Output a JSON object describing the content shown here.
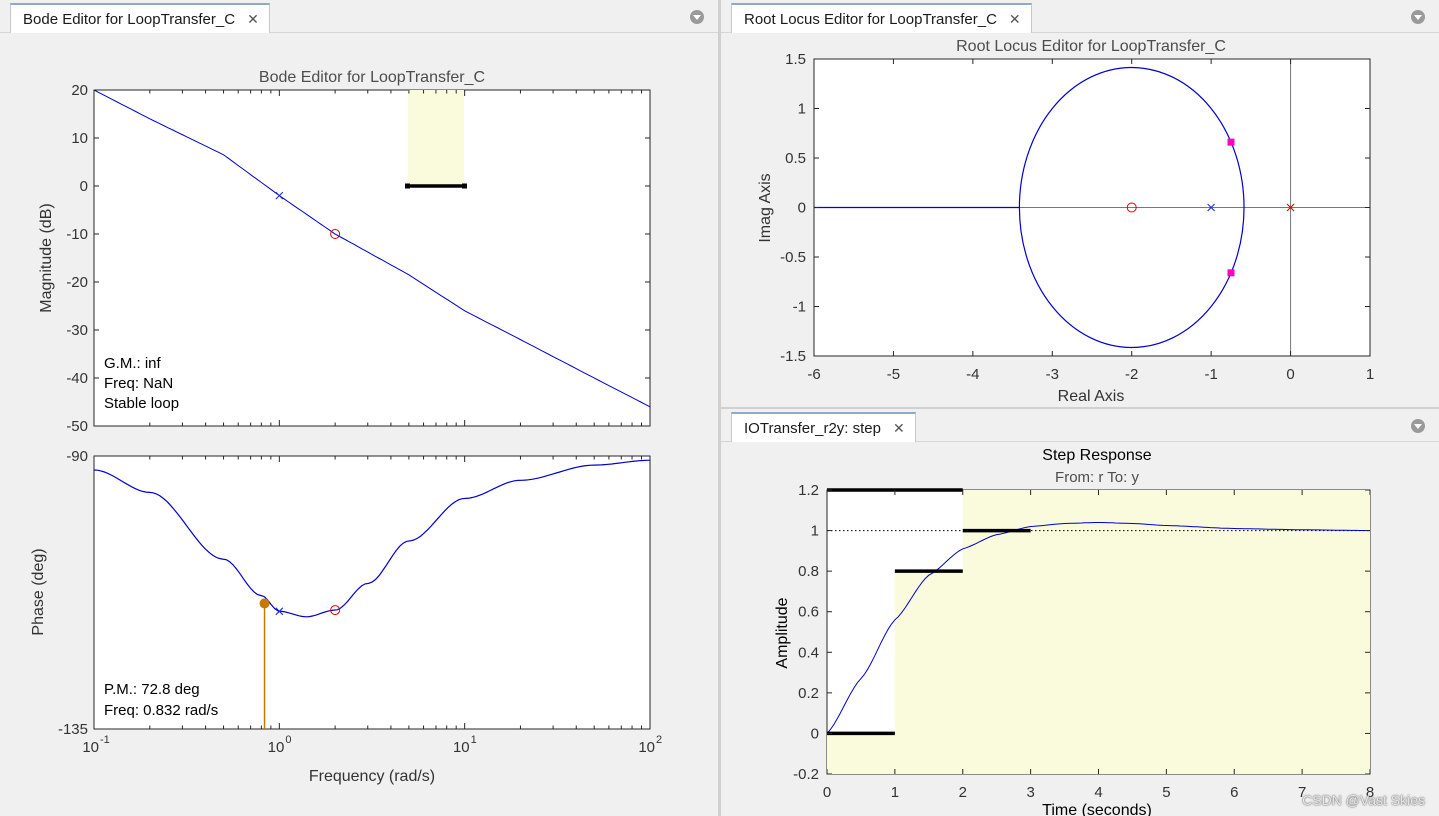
{
  "bode_panel": {
    "tab_label": "Bode Editor for LoopTransfer_C",
    "title": "Bode Editor for LoopTransfer_C",
    "mag_ylabel": "Magnitude (dB)",
    "phase_ylabel": "Phase (deg)",
    "xlabel": "Frequency (rad/s)",
    "mag_ticks": [
      "20",
      "10",
      "0",
      "-10",
      "-20",
      "-30",
      "-40",
      "-50"
    ],
    "phase_ticks": [
      "-90",
      "-135"
    ],
    "x_tick_base": "10",
    "x_tick_exps": [
      "-1",
      "0",
      "1",
      "2"
    ],
    "gm_text": "G.M.: inf",
    "gm_freq_text": "Freq: NaN",
    "stability_text": "Stable loop",
    "pm_text": "P.M.: 72.8 deg",
    "pm_freq_text": "Freq: 0.832 rad/s"
  },
  "rl_panel": {
    "tab_label": "Root Locus Editor for LoopTransfer_C",
    "title": "Root Locus Editor for LoopTransfer_C",
    "xlabel": "Real Axis",
    "ylabel": "Imag Axis",
    "x_ticks": [
      "-6",
      "-5",
      "-4",
      "-3",
      "-2",
      "-1",
      "0",
      "1"
    ],
    "y_ticks": [
      "1.5",
      "1",
      "0.5",
      "0",
      "-0.5",
      "-1",
      "-1.5"
    ]
  },
  "step_panel": {
    "tab_label": "IOTransfer_r2y: step",
    "title": "Step Response",
    "subtitle": "From: r  To: y",
    "xlabel": "Time (seconds)",
    "ylabel": "Amplitude",
    "x_ticks": [
      "0",
      "1",
      "2",
      "3",
      "4",
      "5",
      "6",
      "7",
      "8"
    ],
    "y_ticks": [
      "1.2",
      "1",
      "0.8",
      "0.6",
      "0.4",
      "0.2",
      "0",
      "-0.2"
    ]
  },
  "colors": {
    "curve": "#0000d0",
    "zero_marker": "#e00000",
    "pole_marker": "#1a30d0",
    "closed_loop_pole": "#ff00c8",
    "pm_marker": "#c87800",
    "constraint_fill": "#fafadc"
  },
  "chart_data": [
    {
      "type": "line",
      "title": "Bode Editor for LoopTransfer_C",
      "xlabel": "Frequency (rad/s)",
      "ylabel": "Magnitude (dB)",
      "xscale": "log",
      "xlim": [
        0.1,
        100
      ],
      "ylim": [
        -50,
        20
      ],
      "grid": false,
      "series": [
        {
          "x": [
            0.1,
            0.2,
            0.5,
            1,
            2,
            5,
            10,
            20,
            50,
            100
          ],
          "values": [
            20,
            14,
            6.5,
            -2,
            -10,
            -18.5,
            -26,
            -32,
            -40,
            -46
          ]
        }
      ],
      "markers": [
        {
          "kind": "pole",
          "x": 1,
          "y": -2
        },
        {
          "kind": "zero",
          "x": 2,
          "y": -10
        }
      ],
      "constraint_region": {
        "x": [
          5,
          10
        ],
        "y": [
          0,
          20
        ]
      }
    },
    {
      "type": "line",
      "ylabel": "Phase (deg)",
      "xscale": "log",
      "xlim": [
        0.1,
        100
      ],
      "ylim": [
        -135,
        -90
      ],
      "grid": false,
      "series": [
        {
          "x": [
            0.1,
            0.2,
            0.5,
            0.8,
            1,
            1.4,
            2,
            3,
            5,
            10,
            20,
            50,
            100
          ],
          "values": [
            -92.3,
            -96,
            -107,
            -113,
            -115.6,
            -116.5,
            -115.4,
            -111,
            -104,
            -97,
            -94,
            -91.5,
            -90.7
          ]
        }
      ],
      "markers": [
        {
          "kind": "pole",
          "x": 1,
          "y": -115.6
        },
        {
          "kind": "zero",
          "x": 2,
          "y": -115.4
        },
        {
          "kind": "phase_margin",
          "x": 0.832,
          "y": -114.3
        }
      ]
    },
    {
      "type": "line",
      "title": "Root Locus Editor for LoopTransfer_C",
      "xlabel": "Real Axis",
      "ylabel": "Imag Axis",
      "xlim": [
        -6,
        1
      ],
      "ylim": [
        -1.5,
        1.5
      ],
      "grid": false,
      "locus": {
        "circle_center": [
          -2,
          0
        ],
        "circle_radius": 1.414,
        "real_axis_branch": [
          -6,
          -3.414
        ]
      },
      "open_loop_poles": [
        [
          0,
          0
        ],
        [
          -1,
          0
        ]
      ],
      "open_loop_zeros": [
        [
          -2,
          0
        ]
      ],
      "closed_loop_poles": [
        [
          -0.75,
          0.66
        ],
        [
          -0.75,
          -0.66
        ]
      ]
    },
    {
      "type": "line",
      "title": "Step Response",
      "subtitle": "From: r  To: y",
      "xlabel": "Time (seconds)",
      "ylabel": "Amplitude",
      "xlim": [
        0,
        8
      ],
      "ylim": [
        -0.2,
        1.2
      ],
      "grid": false,
      "series": [
        {
          "x": [
            0,
            0.5,
            1,
            1.5,
            2,
            2.5,
            3,
            3.5,
            4,
            4.5,
            5,
            6,
            7,
            8
          ],
          "values": [
            0,
            0.27,
            0.56,
            0.78,
            0.91,
            0.98,
            1.02,
            1.035,
            1.04,
            1.035,
            1.025,
            1.01,
            1.004,
            1.0
          ]
        }
      ],
      "reference_line": 1.0,
      "constraint_segments": [
        {
          "x": [
            0,
            1
          ],
          "y": 0
        },
        {
          "x": [
            1,
            2
          ],
          "y": 0.8
        },
        {
          "x": [
            0,
            2
          ],
          "y": 1.2
        },
        {
          "x": [
            2,
            3
          ],
          "y": 1.0
        }
      ]
    }
  ],
  "watermark": "CSDN @Vast Skies"
}
